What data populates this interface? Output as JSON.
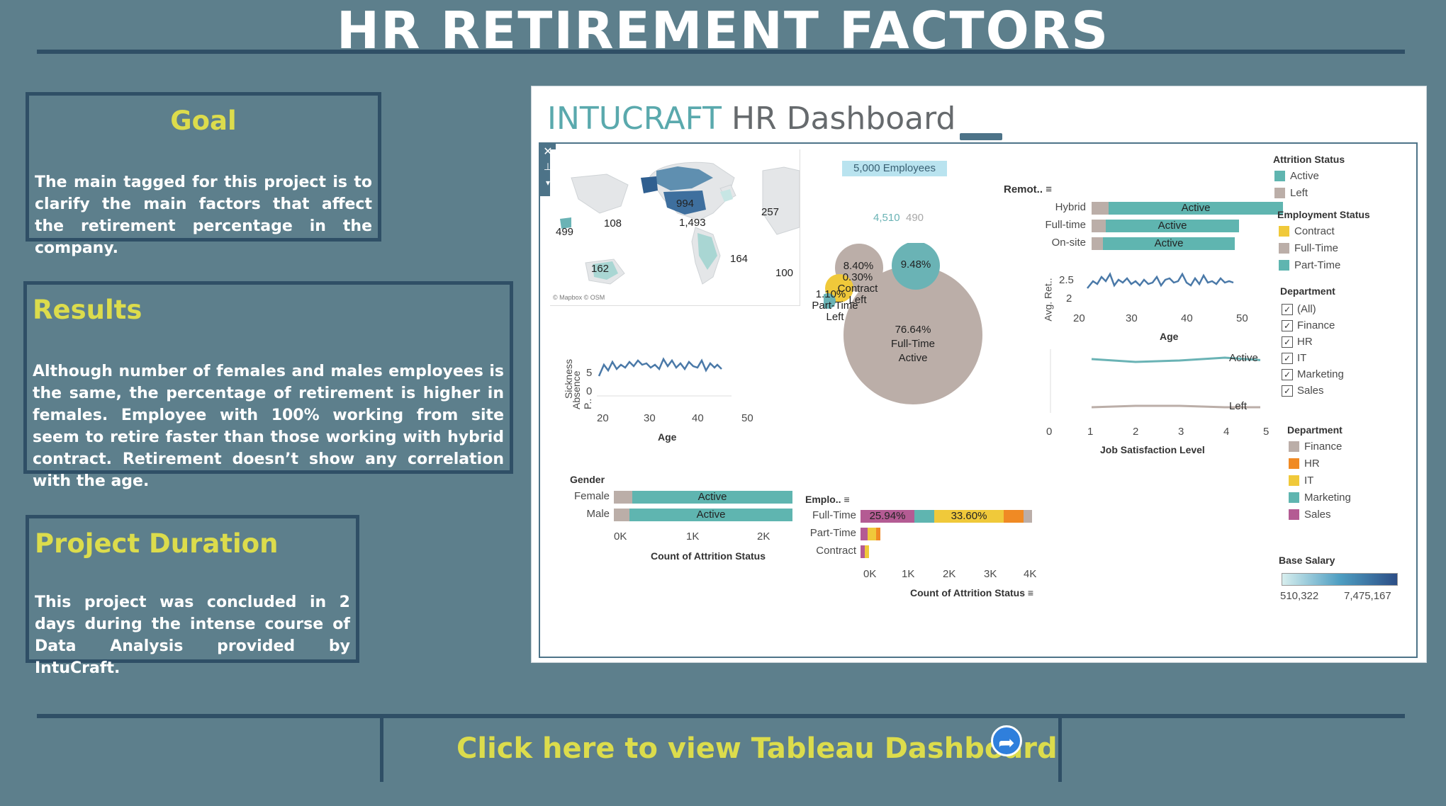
{
  "page": {
    "title": "HR RETIREMENT FACTORS",
    "goal": {
      "heading": "Goal",
      "text": "The main tagged for this project is to clarify the main factors that affect the retirement percentage in the company."
    },
    "results": {
      "heading": "Results",
      "text": "Although number of females and males employees is the same, the percentage of retirement is higher in females. Employee with 100% working from site seem to retire faster than those working with hybrid contract. Retirement doesn’t show any correlation with the age."
    },
    "duration": {
      "heading": "Project Duration",
      "text": "This project was concluded in 2 days during the intense course of Data Analysis provided by IntuCraft."
    },
    "cta": {
      "label": "Click here to view Tableau Dashboard",
      "icon": "share-arrow-icon"
    },
    "colors": {
      "background": "#5d7f8c",
      "accent": "#dcdc4c",
      "border": "#2f4f66"
    }
  },
  "dashboard": {
    "brand": "INTUCRAFT",
    "title_rest": " HR Dashboard",
    "map": {
      "attribution": "© Mapbox © OSM",
      "labels": [
        "994",
        "1,493",
        "499",
        "108",
        "257",
        "164",
        "162",
        "100"
      ]
    },
    "kpi": {
      "employees": "5,000 Employees",
      "active": "4,510",
      "left": "490"
    },
    "remote": {
      "header": "Remot..",
      "rows": [
        {
          "label": "Hybrid",
          "text": "Active"
        },
        {
          "label": "Full-time",
          "text": "Active"
        },
        {
          "label": "On-site",
          "text": "Active"
        }
      ]
    },
    "sickness": {
      "ylabel_1": "Sickness",
      "ylabel_2": "Absence P..",
      "yticks": [
        "5",
        "0"
      ],
      "xticks": [
        "20",
        "30",
        "40",
        "50"
      ],
      "xlabel": "Age"
    },
    "bubbles": [
      {
        "value": "76.64%",
        "l2": "Full-Time",
        "l3": "Active"
      },
      {
        "value": "8.40%",
        "l2": "",
        "l3": ""
      },
      {
        "value": "9.48%",
        "l2": "",
        "l3": ""
      },
      {
        "value": "0.30%",
        "l2": "Contract",
        "l3": "Left"
      },
      {
        "value": "1.10%",
        "l2": "Part-Time",
        "l3": "Left"
      }
    ],
    "avg_ret": {
      "ylabel": "Avg. Ret..",
      "yticks": [
        "2.5",
        "2"
      ],
      "xticks": [
        "20",
        "30",
        "40",
        "50"
      ],
      "xlabel": "Age"
    },
    "satisfaction": {
      "xticks": [
        "0",
        "1",
        "2",
        "3",
        "4",
        "5"
      ],
      "xlabel": "Job Satisfaction Level",
      "series_active": "Active",
      "series_left": "Left"
    },
    "gender": {
      "header": "Gender",
      "rows": [
        {
          "label": "Female",
          "text": "Active"
        },
        {
          "label": "Male",
          "text": "Active"
        }
      ],
      "xticks": [
        "0K",
        "1K",
        "2K"
      ],
      "xlabel": "Count of Attrition Status"
    },
    "employment": {
      "header": "Emplo..",
      "rows": [
        {
          "label": "Full-Time",
          "p1": "25.94%",
          "p2": "33.60%"
        },
        {
          "label": "Part-Time"
        },
        {
          "label": "Contract"
        }
      ],
      "xticks": [
        "0K",
        "1K",
        "2K",
        "3K",
        "4K"
      ],
      "xlabel": "Count of Attrition Status"
    },
    "legends": {
      "attrition": {
        "title": "Attrition Status",
        "items": [
          {
            "label": "Active",
            "color": "#5fb5b0"
          },
          {
            "label": "Left",
            "color": "#bbaea8"
          }
        ]
      },
      "employment": {
        "title": "Employment Status",
        "items": [
          {
            "label": "Contract",
            "color": "#f0c93a"
          },
          {
            "label": "Full-Time",
            "color": "#bbaea8"
          },
          {
            "label": "Part-Time",
            "color": "#5fb5b0"
          }
        ]
      },
      "department_filter": {
        "title": "Department",
        "items": [
          "(All)",
          "Finance",
          "HR",
          "IT",
          "Marketing",
          "Sales"
        ]
      },
      "department": {
        "title": "Department",
        "items": [
          {
            "label": "Finance",
            "color": "#bbaea8"
          },
          {
            "label": "HR",
            "color": "#f08a24"
          },
          {
            "label": "IT",
            "color": "#f0c93a"
          },
          {
            "label": "Marketing",
            "color": "#5fb5b0"
          },
          {
            "label": "Sales",
            "color": "#b45b93"
          }
        ]
      },
      "salary": {
        "title": "Base Salary",
        "min": "510,322",
        "max": "7,475,167"
      }
    }
  }
}
